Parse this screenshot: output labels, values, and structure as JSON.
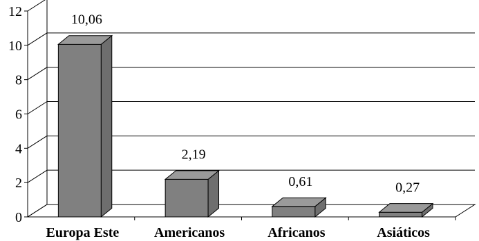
{
  "chart_data": {
    "type": "bar",
    "categories": [
      "Europa Este",
      "Americanos",
      "Africanos",
      "Asiáticos"
    ],
    "values": [
      10.06,
      2.19,
      0.61,
      0.27
    ],
    "data_labels": [
      "10,06",
      "2,19",
      "0,61",
      "0,27"
    ],
    "yticks": [
      "0",
      "2",
      "4",
      "6",
      "8",
      "10",
      "12"
    ],
    "ylim": [
      0,
      12
    ],
    "grid": true,
    "legend": "none",
    "three_d": true,
    "colors": {
      "bar_front": "#808080",
      "bar_top": "#9a9a9a",
      "bar_side": "#6e6e6e",
      "grid": "#000000",
      "axis": "#000000"
    }
  }
}
